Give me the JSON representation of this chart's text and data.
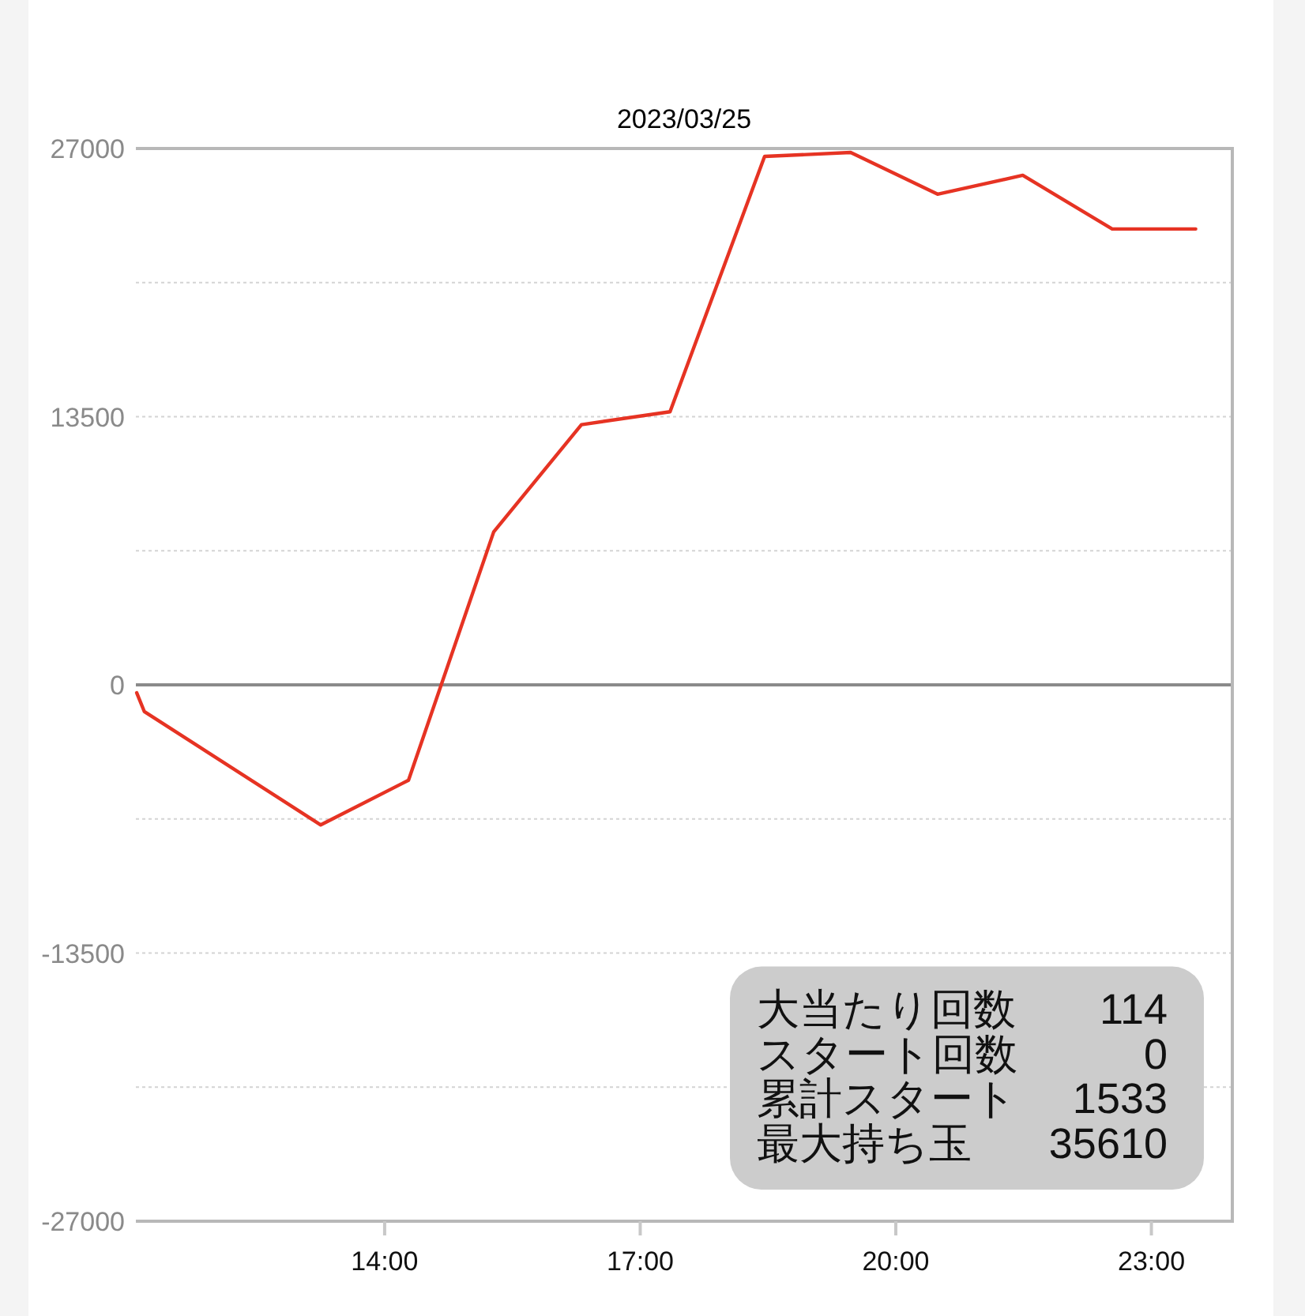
{
  "chart_data": {
    "type": "line",
    "title": "2023/03/25",
    "x": [
      11.09,
      11.18,
      13.25,
      14.28,
      15.28,
      16.31,
      17.35,
      18.46,
      19.47,
      20.49,
      21.49,
      22.54,
      23.52
    ],
    "values": [
      -400,
      -1350,
      -7050,
      -4800,
      7700,
      13100,
      13750,
      26600,
      26800,
      24700,
      25650,
      22950,
      22950
    ],
    "color": "#e63323",
    "xlim": [
      11.08,
      23.95
    ],
    "xticks": [
      {
        "value": 14,
        "label": "14:00"
      },
      {
        "value": 17,
        "label": "17:00"
      },
      {
        "value": 20,
        "label": "20:00"
      },
      {
        "value": 23,
        "label": "23:00"
      }
    ],
    "ylim": [
      -27000,
      27000
    ],
    "yticks": [
      -27000,
      {
        "value": -20250,
        "label": null
      },
      -13500,
      {
        "value": -6750,
        "label": null
      },
      0,
      {
        "value": 6750,
        "label": null
      },
      13500,
      {
        "value": 20250,
        "label": null
      },
      27000
    ],
    "grid": "y",
    "ref_lines": [
      {
        "axis": "y",
        "value": 0,
        "color": "#8a8a8a"
      }
    ],
    "annotations": [
      "大当たり回数",
      "114",
      "スタート回数",
      "0",
      "累計スタート",
      "1533",
      "最大持ち玉",
      "35610"
    ]
  }
}
